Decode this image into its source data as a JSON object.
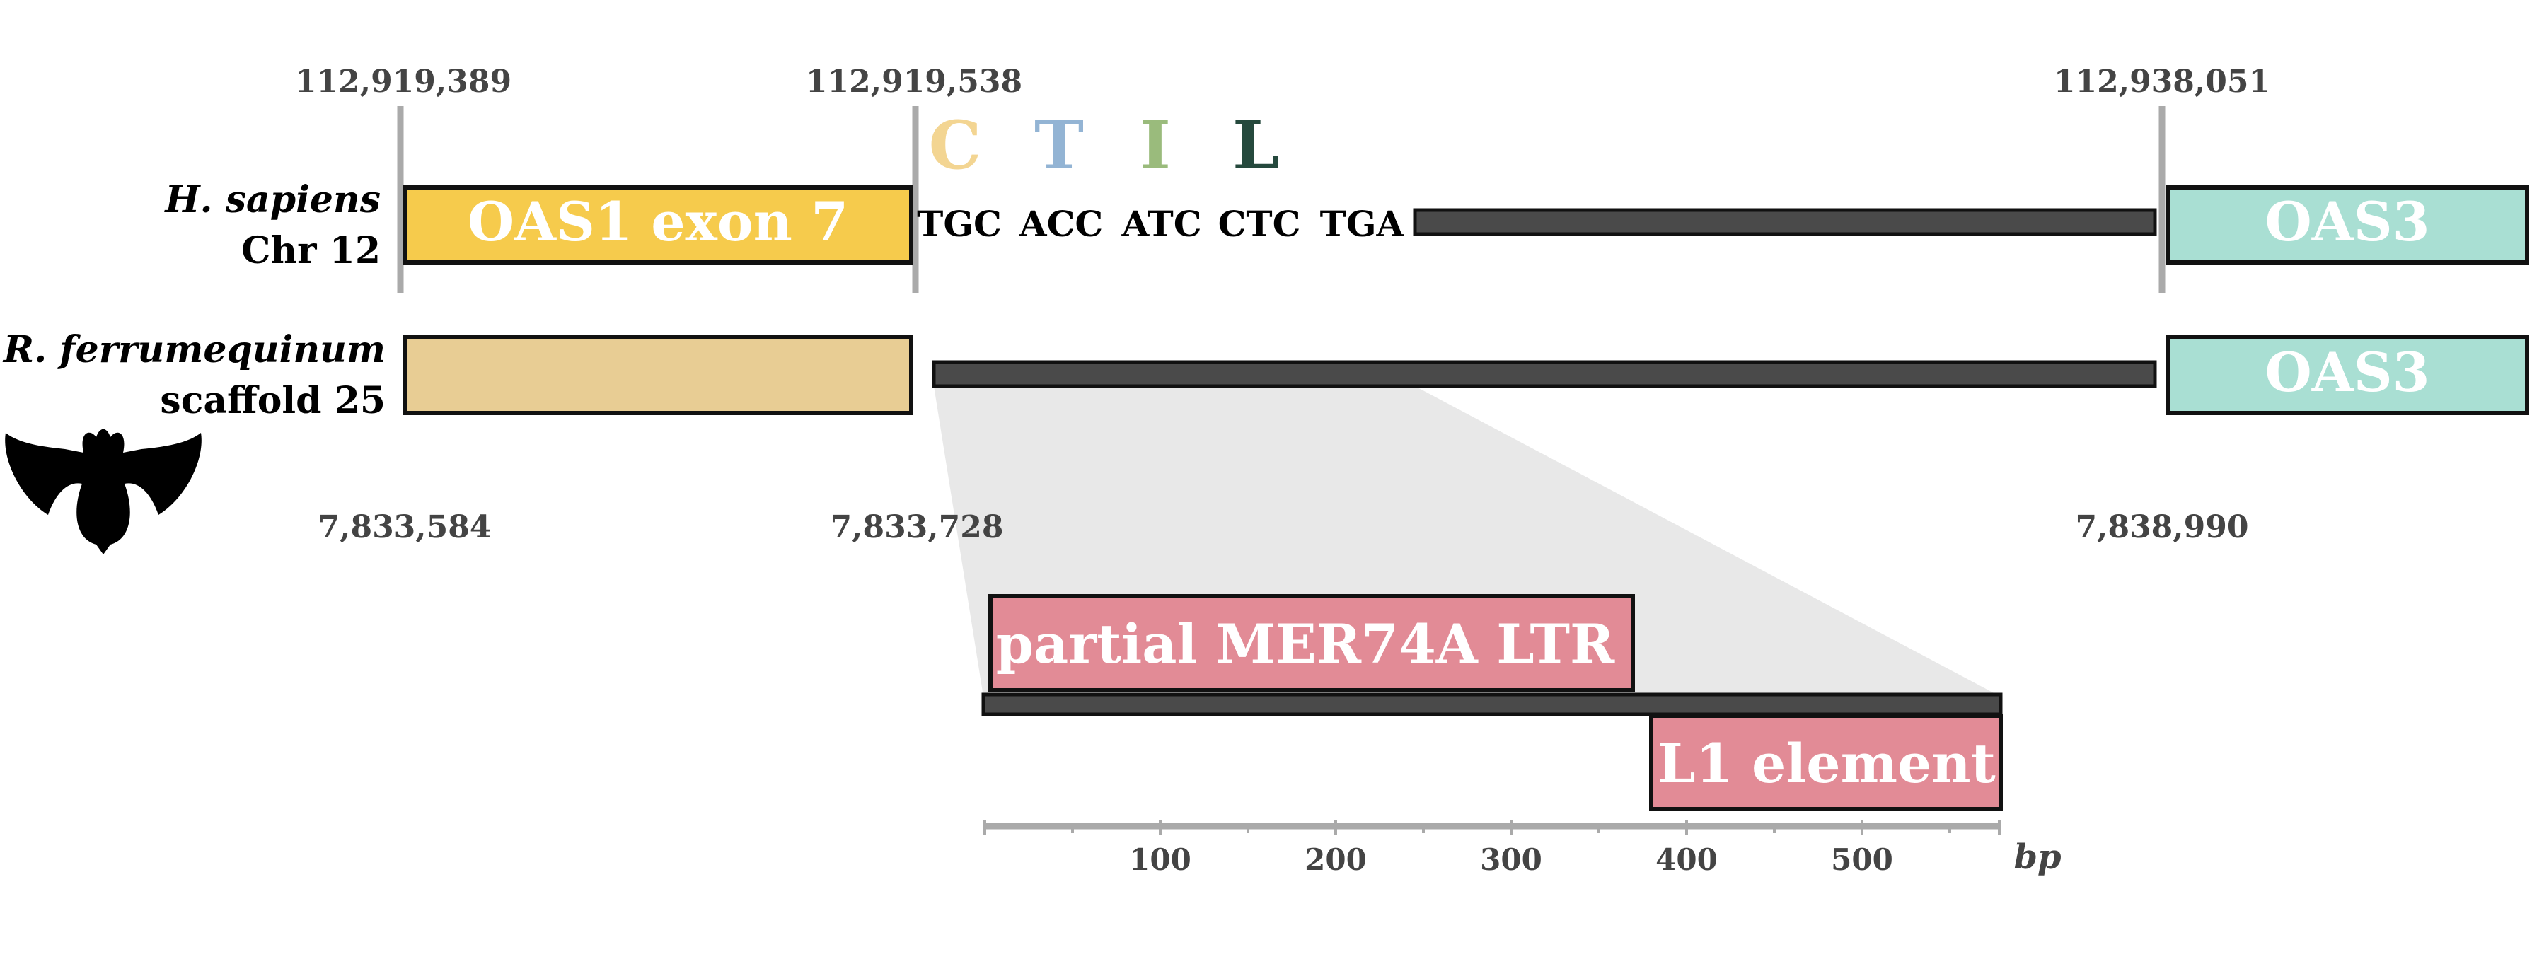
{
  "coordinates": {
    "human_start": "112,919,389",
    "human_exon_end": "112,919,538",
    "human_oas3_start": "112,938,051",
    "bat_start": "7,833,584",
    "bat_exon_end": "7,833,728",
    "bat_oas3_start": "7,838,990"
  },
  "human": {
    "species": "H. sapiens",
    "chromosome": "Chr 12",
    "exon_label": "OAS1 exon 7",
    "oas3_label": "OAS3",
    "codons": [
      {
        "codon": "TGC",
        "aa": "C",
        "aa_color": "#f3d592"
      },
      {
        "codon": "ACC",
        "aa": "T",
        "aa_color": "#93b4d4"
      },
      {
        "codon": "ATC",
        "aa": "I",
        "aa_color": "#9abb7c"
      },
      {
        "codon": "CTC",
        "aa": "L",
        "aa_color": "#25493d"
      }
    ],
    "stop_codon": "TGA",
    "stop_color": "#7a1c14"
  },
  "bat": {
    "species": "R. ferrumequinum",
    "scaffold": "scaffold 25",
    "oas3_label": "OAS3"
  },
  "inset": {
    "ltr_label": "partial MER74A LTR",
    "l1_label": "L1 element",
    "axis_ticks": [
      "100",
      "200",
      "300",
      "400",
      "500"
    ],
    "axis_unit": "bp"
  },
  "colors": {
    "exon_human": "#f6cb4c",
    "exon_bat": "#e8cd94",
    "oas3": "#a9dfd3",
    "repeat": "#e28b96",
    "intron": "#4a4a4a",
    "boundary": "#aaaaaa",
    "zoom": "#e8e8e8"
  },
  "icons": {
    "bat": "bat-silhouette-icon"
  }
}
